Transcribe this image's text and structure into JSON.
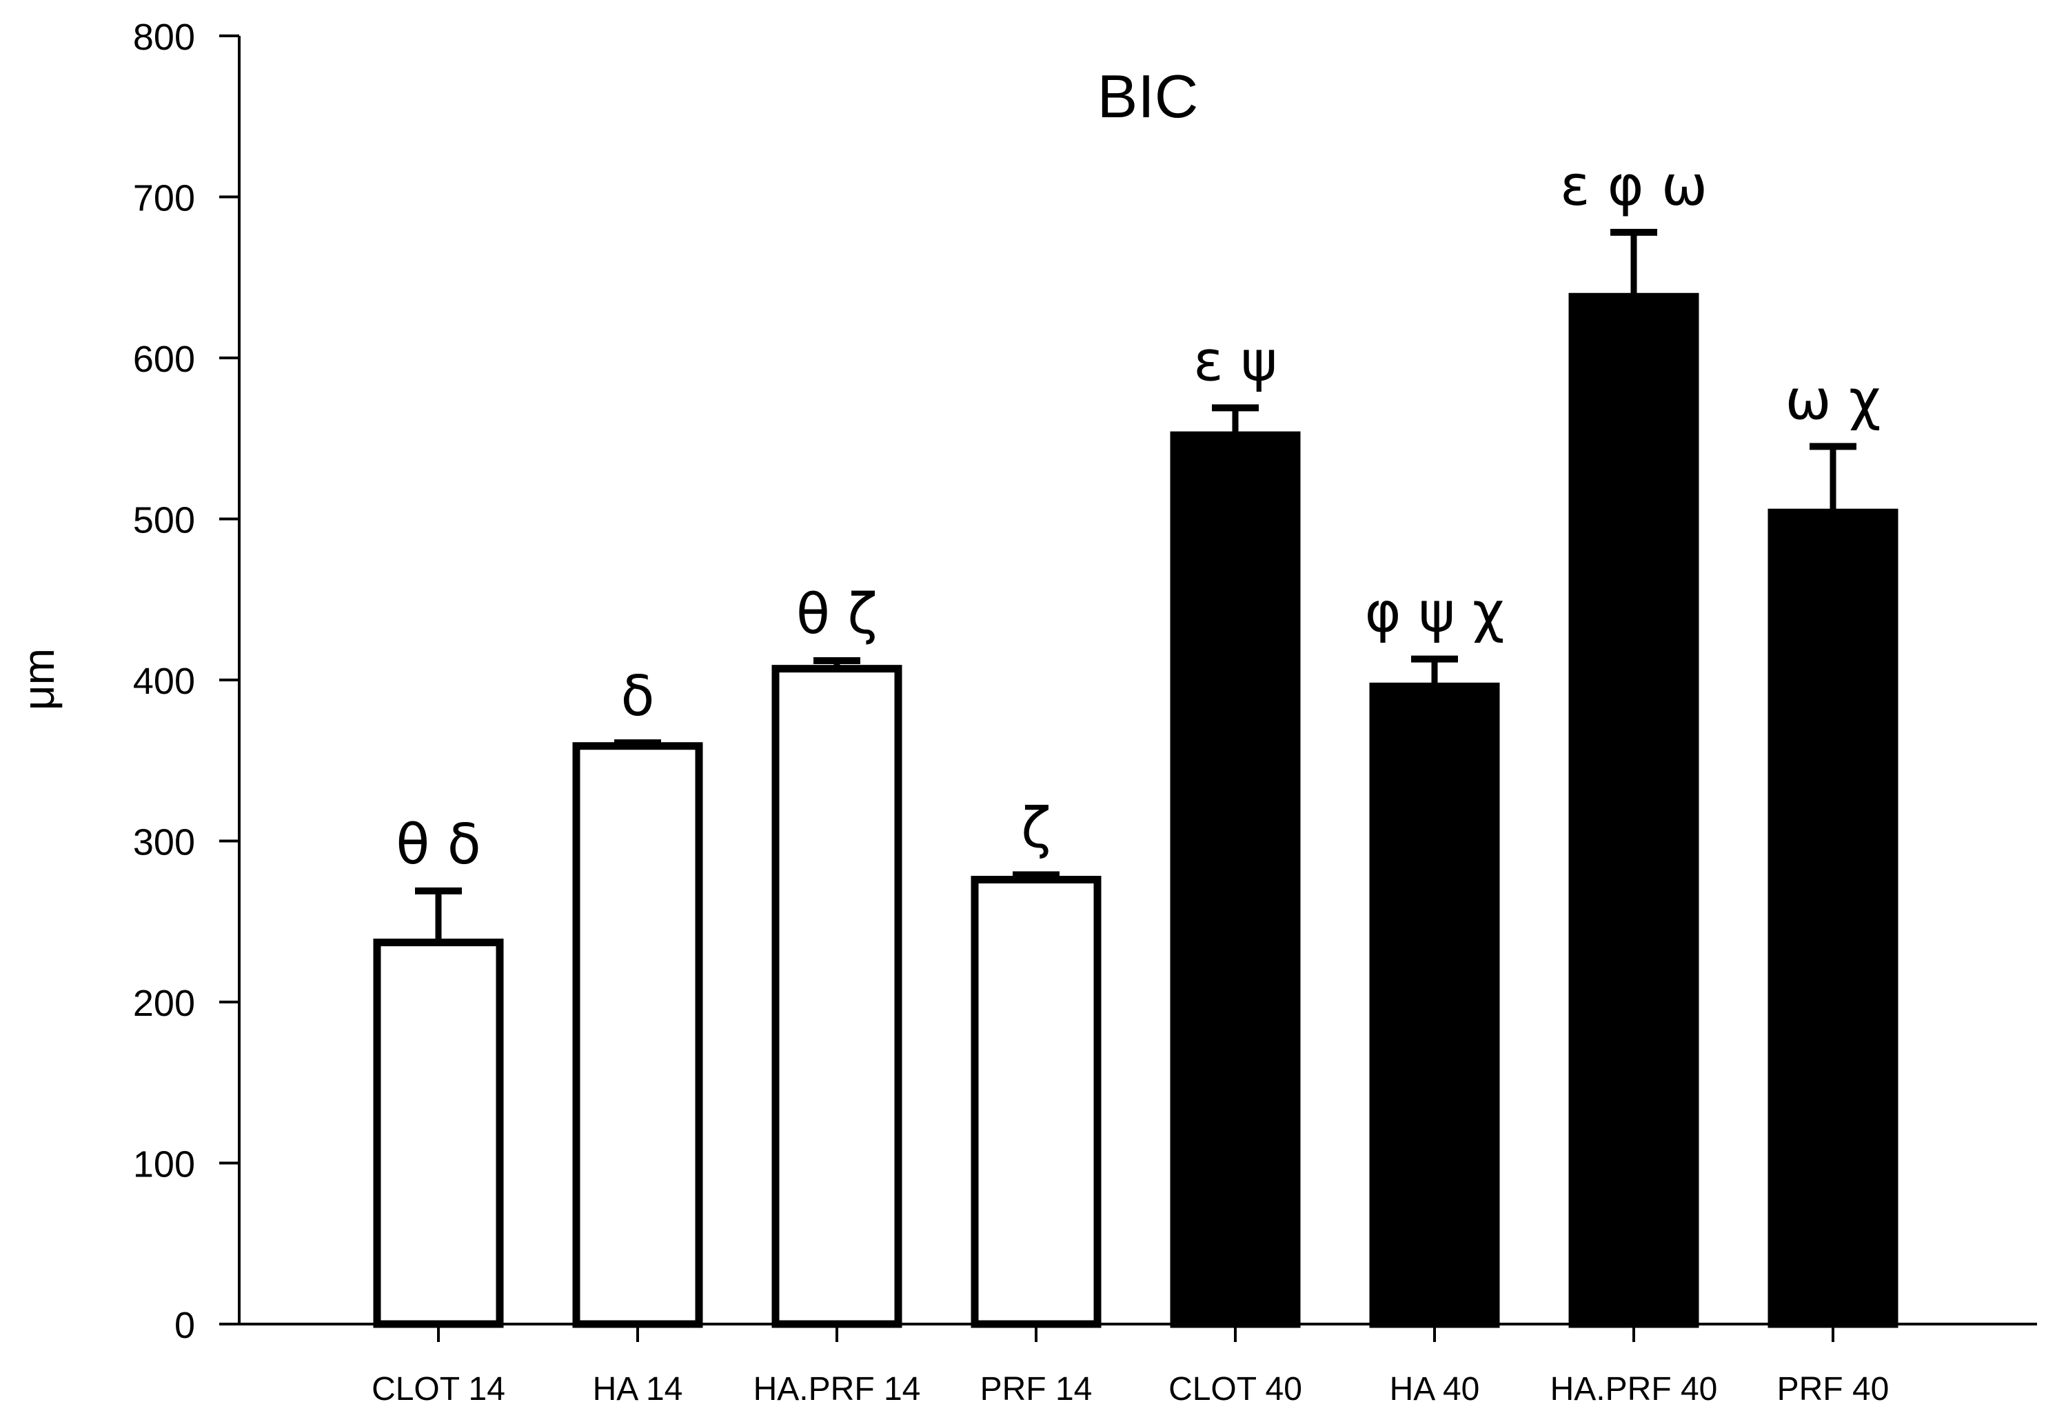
{
  "chart_data": {
    "type": "bar",
    "title": "BIC",
    "xlabel": "",
    "ylabel": "μm",
    "ylim": [
      0,
      800
    ],
    "yticks": [
      0,
      100,
      200,
      300,
      400,
      500,
      600,
      700,
      800
    ],
    "categories": [
      "CLOT 14",
      "HA 14",
      "HA.PRF 14",
      "PRF 14",
      "CLOT 40",
      "HA 40",
      "HA.PRF 40",
      "PRF 40"
    ],
    "values": [
      237,
      359,
      407,
      276,
      552,
      396,
      638,
      504
    ],
    "errors": [
      32,
      2,
      5,
      3,
      17,
      17,
      40,
      41
    ],
    "annotations": [
      "θ δ",
      "δ",
      "θ ζ",
      "ζ",
      "ε ψ",
      "φ ψ χ",
      "ε φ ω",
      "ω χ"
    ],
    "bar_fill": [
      "#ffffff",
      "#ffffff",
      "#ffffff",
      "#ffffff",
      "#000000",
      "#000000",
      "#000000",
      "#000000"
    ],
    "bar_stroke": "#000000",
    "grid": false
  }
}
